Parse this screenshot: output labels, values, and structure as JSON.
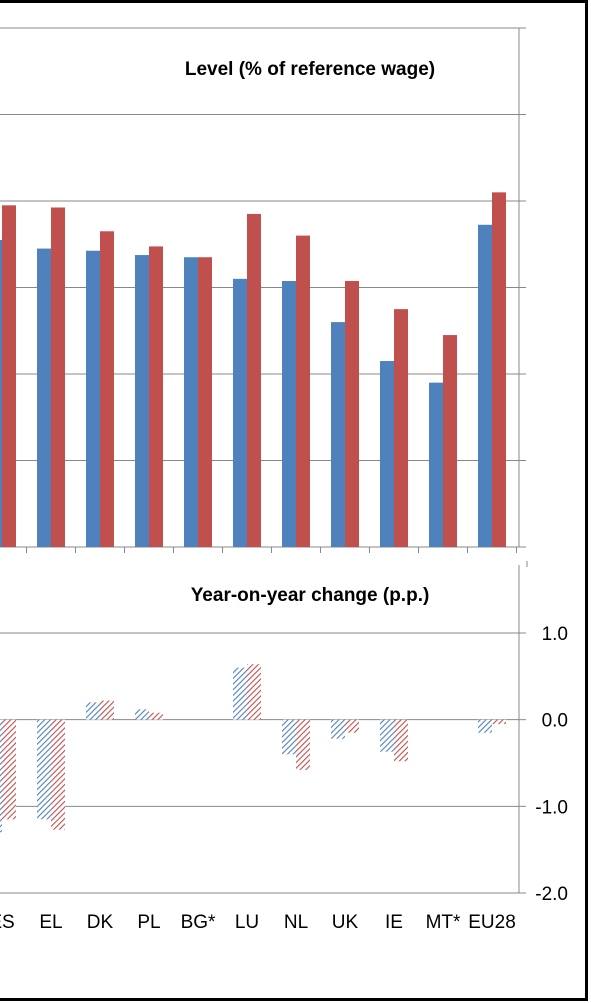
{
  "chart_data": [
    {
      "type": "bar",
      "title": "Level (% of reference wage)",
      "categories": [
        "ES",
        "EL",
        "DK",
        "PL",
        "BG*",
        "LU",
        "NL",
        "UK",
        "IE",
        "MT*",
        "EU28"
      ],
      "series": [
        {
          "color": "#4F81BD",
          "values": [
            71,
            69,
            68.5,
            67.5,
            67,
            62,
            61.5,
            52,
            43,
            38,
            74.5
          ]
        },
        {
          "color": "#C0504D",
          "values": [
            79,
            78.5,
            73,
            69.5,
            67,
            77,
            72,
            61.5,
            55,
            49,
            82
          ]
        }
      ],
      "y_tick_labels": [],
      "grid": true
    },
    {
      "type": "bar",
      "title": "Year-on-year change (p.p.)",
      "categories": [
        "ES",
        "EL",
        "DK",
        "PL",
        "BG*",
        "LU",
        "NL",
        "UK",
        "IE",
        "MT*",
        "EU28"
      ],
      "series": [
        {
          "color": "#4F81BD",
          "pattern": "hatched",
          "values": [
            -1.3,
            -1.15,
            0.2,
            0.12,
            0,
            0.6,
            -0.4,
            -0.22,
            -0.37,
            0,
            -0.15
          ]
        },
        {
          "color": "#C0504D",
          "pattern": "hatched",
          "values": [
            -1.15,
            -1.27,
            0.22,
            0.08,
            0,
            0.64,
            -0.58,
            -0.15,
            -0.48,
            0,
            -0.05
          ]
        }
      ],
      "ylim": [
        -2.0,
        1.0
      ],
      "y_tick_labels": [
        "1.0",
        "0.0",
        "-1.0",
        "-2.0"
      ],
      "grid": true
    }
  ]
}
